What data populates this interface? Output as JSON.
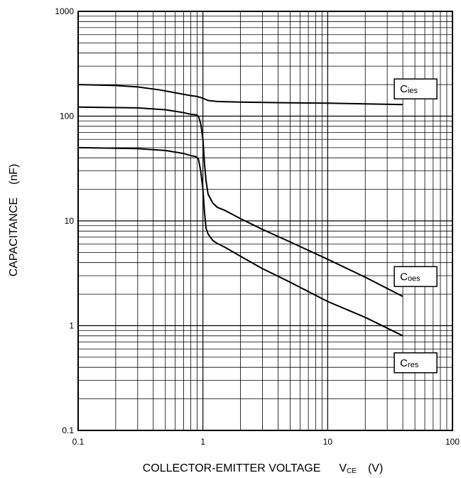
{
  "chart_data": {
    "type": "line",
    "xlabel": {
      "main": "COLLECTOR-EMITTER VOLTAGE",
      "symbol": "V",
      "sub": "CE",
      "unit": "(V)"
    },
    "ylabel": {
      "main": "CAPACITANCE",
      "unit": "(nF)"
    },
    "x_scale": "log",
    "y_scale": "log",
    "xlim": [
      0.1,
      100
    ],
    "ylim": [
      0.1,
      1000
    ],
    "x_ticks": [
      "0.1",
      "1",
      "10",
      "100"
    ],
    "y_ticks": [
      "0.1",
      "1",
      "10",
      "100",
      "1000"
    ],
    "grid": true,
    "series": [
      {
        "name": "Cies",
        "symbol": "C",
        "sub": "ies",
        "color": "#000000",
        "points": [
          [
            0.1,
            200
          ],
          [
            0.2,
            196
          ],
          [
            0.3,
            190
          ],
          [
            0.45,
            178
          ],
          [
            0.6,
            167
          ],
          [
            0.8,
            157
          ],
          [
            0.9,
            154
          ],
          [
            1.0,
            148
          ],
          [
            1.1,
            141
          ],
          [
            1.3,
            138
          ],
          [
            2,
            136
          ],
          [
            5,
            134
          ],
          [
            10,
            133
          ],
          [
            20,
            131
          ],
          [
            40,
            129
          ]
        ]
      },
      {
        "name": "Coes",
        "symbol": "C",
        "sub": "oes",
        "color": "#000000",
        "points": [
          [
            0.1,
            122
          ],
          [
            0.3,
            120
          ],
          [
            0.5,
            115
          ],
          [
            0.7,
            108
          ],
          [
            0.8,
            104
          ],
          [
            0.88,
            103
          ],
          [
            0.92,
            100
          ],
          [
            0.96,
            85
          ],
          [
            1.0,
            60
          ],
          [
            1.03,
            35
          ],
          [
            1.06,
            24
          ],
          [
            1.1,
            18
          ],
          [
            1.2,
            14.8
          ],
          [
            1.3,
            13.5
          ],
          [
            1.5,
            12.6
          ],
          [
            2,
            10.5
          ],
          [
            3,
            8.3
          ],
          [
            5,
            6.3
          ],
          [
            10,
            4.3
          ],
          [
            20,
            2.9
          ],
          [
            40,
            1.9
          ]
        ]
      },
      {
        "name": "Cres",
        "symbol": "C",
        "sub": "res",
        "color": "#000000",
        "points": [
          [
            0.1,
            50
          ],
          [
            0.3,
            49
          ],
          [
            0.5,
            47
          ],
          [
            0.7,
            44
          ],
          [
            0.8,
            42
          ],
          [
            0.88,
            41
          ],
          [
            0.92,
            39
          ],
          [
            0.96,
            30
          ],
          [
            1.0,
            20
          ],
          [
            1.03,
            12
          ],
          [
            1.06,
            8.5
          ],
          [
            1.1,
            7.5
          ],
          [
            1.2,
            6.5
          ],
          [
            1.3,
            6.1
          ],
          [
            1.5,
            5.6
          ],
          [
            2,
            4.6
          ],
          [
            3,
            3.5
          ],
          [
            5,
            2.6
          ],
          [
            10,
            1.7
          ],
          [
            20,
            1.2
          ],
          [
            40,
            0.8
          ]
        ]
      }
    ]
  }
}
